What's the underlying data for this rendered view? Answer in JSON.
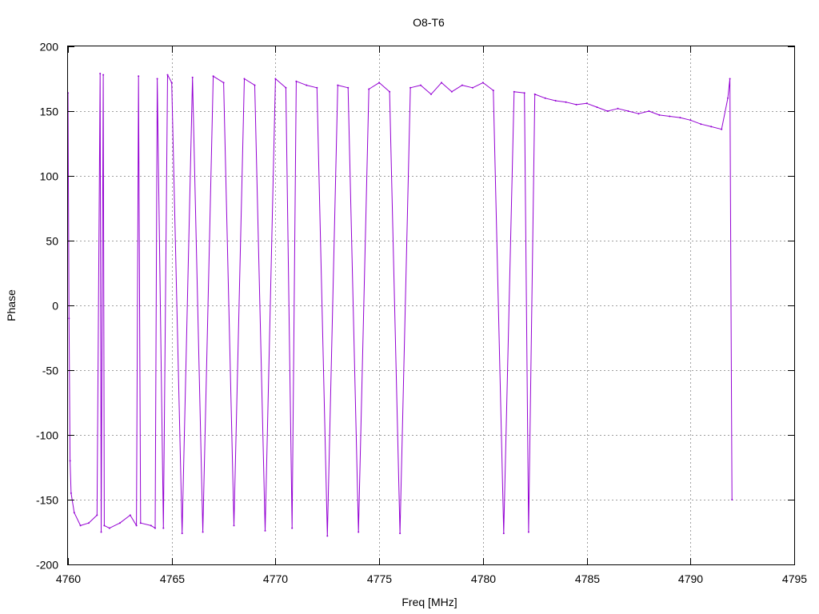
{
  "chart_data": {
    "type": "line",
    "title": "O8-T6",
    "xlabel": "Freq [MHz]",
    "ylabel": "Phase",
    "xlim": [
      4760,
      4795
    ],
    "ylim": [
      -200,
      200
    ],
    "xticks": [
      4760,
      4765,
      4770,
      4775,
      4780,
      4785,
      4790,
      4795
    ],
    "yticks": [
      -200,
      -150,
      -100,
      -50,
      0,
      50,
      100,
      150,
      200
    ],
    "grid": true,
    "legend": "none",
    "series": [
      {
        "color": "#9400d3",
        "x": [
          4760.0,
          4760.05,
          4760.1,
          4760.15,
          4760.3,
          4760.6,
          4761.0,
          4761.4,
          4761.55,
          4761.6,
          4761.7,
          4761.75,
          4762.0,
          4762.5,
          4763.0,
          4763.3,
          4763.4,
          4763.5,
          4764.0,
          4764.2,
          4764.3,
          4764.6,
          4764.8,
          4765.0,
          4765.5,
          4766.0,
          4766.5,
          4767.0,
          4767.5,
          4768.0,
          4768.5,
          4769.0,
          4769.5,
          4770.0,
          4770.5,
          4770.8,
          4771.0,
          4771.5,
          4772.0,
          4772.5,
          4773.0,
          4773.5,
          4774.0,
          4774.5,
          4775.0,
          4775.5,
          4776.0,
          4776.5,
          4777.0,
          4777.5,
          4778.0,
          4778.5,
          4779.0,
          4779.5,
          4780.0,
          4780.5,
          4781.0,
          4781.5,
          4782.0,
          4782.2,
          4782.5,
          4783.0,
          4783.5,
          4784.0,
          4784.5,
          4785.0,
          4785.5,
          4786.0,
          4786.5,
          4787.0,
          4787.5,
          4788.0,
          4788.5,
          4789.0,
          4789.5,
          4790.0,
          4790.5,
          4791.0,
          4791.5,
          4791.8,
          4791.9,
          4792.0
        ],
        "y": [
          164,
          -10,
          -120,
          -145,
          -160,
          -170,
          -168,
          -162,
          179,
          -175,
          178,
          -170,
          -172,
          -168,
          -162,
          -170,
          177,
          -168,
          -170,
          -172,
          175,
          -172,
          178,
          172,
          -176,
          176,
          -175,
          177,
          172,
          -170,
          175,
          170,
          -174,
          175,
          168,
          -172,
          173,
          170,
          168,
          -178,
          170,
          168,
          -175,
          167,
          172,
          165,
          -176,
          168,
          170,
          163,
          172,
          165,
          170,
          168,
          172,
          166,
          -176,
          165,
          164,
          -175,
          163,
          160,
          158,
          157,
          155,
          156,
          153,
          150,
          152,
          150,
          148,
          150,
          147,
          146,
          145,
          143,
          140,
          138,
          136,
          160,
          175,
          -150
        ]
      }
    ]
  }
}
